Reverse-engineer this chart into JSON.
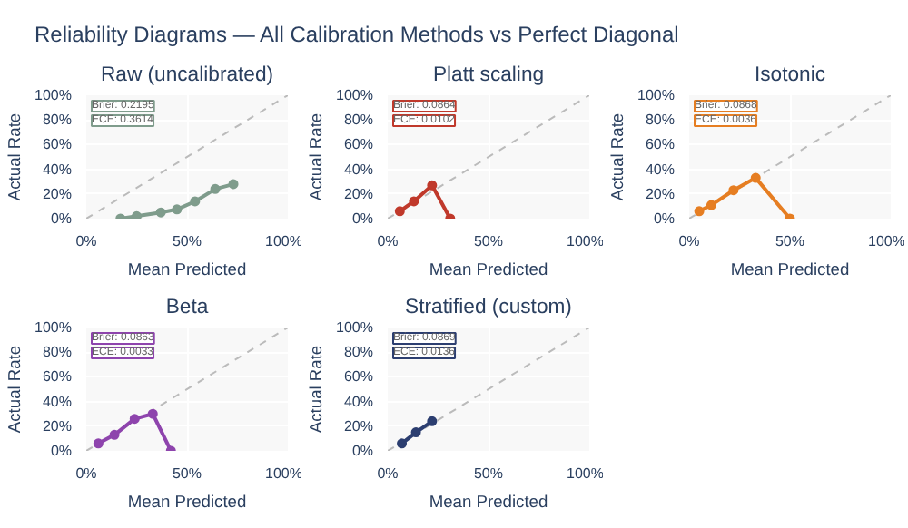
{
  "chart_data": [
    {
      "type": "other",
      "title": "Reliability Diagrams — All Calibration Methods vs Perfect Diagonal"
    },
    {
      "type": "line",
      "title": "Raw (uncalibrated)",
      "xlabel": "Mean Predicted",
      "ylabel": "Actual Rate",
      "xlim": [
        0,
        1
      ],
      "ylim": [
        0,
        1
      ],
      "xticks": [
        {
          "value": 0,
          "label": "0%"
        },
        {
          "value": 0.5,
          "label": "50%"
        },
        {
          "value": 1,
          "label": "100%"
        }
      ],
      "yticks": [
        {
          "value": 0,
          "label": "0%"
        },
        {
          "value": 0.2,
          "label": "20%"
        },
        {
          "value": 0.4,
          "label": "40%"
        },
        {
          "value": 0.6,
          "label": "60%"
        },
        {
          "value": 0.8,
          "label": "80%"
        },
        {
          "value": 1,
          "label": "100%"
        }
      ],
      "grid": true,
      "marker": "circle",
      "annotations": [
        "Brier: 0.2195",
        "ECE: 0.3614"
      ],
      "series": [
        {
          "color": "#bbbbbb",
          "x": [
            0,
            1
          ],
          "values": [
            0,
            1
          ],
          "line_style": "dashed",
          "marker": "none"
        },
        {
          "color": "#7f9c8c",
          "x": [
            0.17,
            0.25,
            0.37,
            0.45,
            0.54,
            0.64,
            0.73
          ],
          "values": [
            0,
            0.02,
            0.05,
            0.075,
            0.14,
            0.24,
            0.28
          ]
        }
      ]
    },
    {
      "type": "line",
      "title": "Platt scaling",
      "xlabel": "Mean Predicted",
      "ylabel": "Actual Rate",
      "xlim": [
        0,
        1
      ],
      "ylim": [
        0,
        1
      ],
      "xticks": [
        {
          "value": 0,
          "label": "0%"
        },
        {
          "value": 0.5,
          "label": "50%"
        },
        {
          "value": 1,
          "label": "100%"
        }
      ],
      "yticks": [
        {
          "value": 0,
          "label": "0%"
        },
        {
          "value": 0.2,
          "label": "20%"
        },
        {
          "value": 0.4,
          "label": "40%"
        },
        {
          "value": 0.6,
          "label": "60%"
        },
        {
          "value": 0.8,
          "label": "80%"
        },
        {
          "value": 1,
          "label": "100%"
        }
      ],
      "grid": true,
      "marker": "circle",
      "annotations": [
        "Brier: 0.0864",
        "ECE: 0.0102"
      ],
      "series": [
        {
          "color": "#bbbbbb",
          "x": [
            0,
            1
          ],
          "values": [
            0,
            1
          ],
          "line_style": "dashed",
          "marker": "none"
        },
        {
          "color": "#c0392b",
          "x": [
            0.06,
            0.13,
            0.22,
            0.31
          ],
          "values": [
            0.06,
            0.14,
            0.27,
            0
          ]
        }
      ]
    },
    {
      "type": "line",
      "title": "Isotonic",
      "xlabel": "Mean Predicted",
      "ylabel": "Actual Rate",
      "xlim": [
        0,
        1
      ],
      "ylim": [
        0,
        1
      ],
      "xticks": [
        {
          "value": 0,
          "label": "0%"
        },
        {
          "value": 0.5,
          "label": "50%"
        },
        {
          "value": 1,
          "label": "100%"
        }
      ],
      "yticks": [
        {
          "value": 0,
          "label": "0%"
        },
        {
          "value": 0.2,
          "label": "20%"
        },
        {
          "value": 0.4,
          "label": "40%"
        },
        {
          "value": 0.6,
          "label": "60%"
        },
        {
          "value": 0.8,
          "label": "80%"
        },
        {
          "value": 1,
          "label": "100%"
        }
      ],
      "grid": true,
      "marker": "circle",
      "annotations": [
        "Brier: 0.0868",
        "ECE: 0.0036"
      ],
      "series": [
        {
          "color": "#bbbbbb",
          "x": [
            0,
            1
          ],
          "values": [
            0,
            1
          ],
          "line_style": "dashed",
          "marker": "none"
        },
        {
          "color": "#e67e22",
          "x": [
            0.05,
            0.11,
            0.22,
            0.33,
            0.5
          ],
          "values": [
            0.06,
            0.11,
            0.23,
            0.33,
            0
          ]
        }
      ]
    },
    {
      "type": "line",
      "title": "Beta",
      "xlabel": "Mean Predicted",
      "ylabel": "Actual Rate",
      "xlim": [
        0,
        1
      ],
      "ylim": [
        0,
        1
      ],
      "xticks": [
        {
          "value": 0,
          "label": "0%"
        },
        {
          "value": 0.5,
          "label": "50%"
        },
        {
          "value": 1,
          "label": "100%"
        }
      ],
      "yticks": [
        {
          "value": 0,
          "label": "0%"
        },
        {
          "value": 0.2,
          "label": "20%"
        },
        {
          "value": 0.4,
          "label": "40%"
        },
        {
          "value": 0.6,
          "label": "60%"
        },
        {
          "value": 0.8,
          "label": "80%"
        },
        {
          "value": 1,
          "label": "100%"
        }
      ],
      "grid": true,
      "marker": "circle",
      "annotations": [
        "Brier: 0.0863",
        "ECE: 0.0033"
      ],
      "series": [
        {
          "color": "#bbbbbb",
          "x": [
            0,
            1
          ],
          "values": [
            0,
            1
          ],
          "line_style": "dashed",
          "marker": "none"
        },
        {
          "color": "#8e44ad",
          "x": [
            0.06,
            0.14,
            0.24,
            0.33,
            0.42
          ],
          "values": [
            0.06,
            0.13,
            0.26,
            0.3,
            0
          ]
        }
      ]
    },
    {
      "type": "line",
      "title": "Stratified (custom)",
      "xlabel": "Mean Predicted",
      "ylabel": "Actual Rate",
      "xlim": [
        0,
        1
      ],
      "ylim": [
        0,
        1
      ],
      "xticks": [
        {
          "value": 0,
          "label": "0%"
        },
        {
          "value": 0.5,
          "label": "50%"
        },
        {
          "value": 1,
          "label": "100%"
        }
      ],
      "yticks": [
        {
          "value": 0,
          "label": "0%"
        },
        {
          "value": 0.2,
          "label": "20%"
        },
        {
          "value": 0.4,
          "label": "40%"
        },
        {
          "value": 0.6,
          "label": "60%"
        },
        {
          "value": 0.8,
          "label": "80%"
        },
        {
          "value": 1,
          "label": "100%"
        }
      ],
      "grid": true,
      "marker": "circle",
      "annotations": [
        "Brier: 0.0869",
        "ECE: 0.0136"
      ],
      "series": [
        {
          "color": "#bbbbbb",
          "x": [
            0,
            1
          ],
          "values": [
            0,
            1
          ],
          "line_style": "dashed",
          "marker": "none"
        },
        {
          "color": "#2c3e70",
          "x": [
            0.07,
            0.14,
            0.22
          ],
          "values": [
            0.06,
            0.15,
            0.24
          ]
        }
      ]
    }
  ]
}
